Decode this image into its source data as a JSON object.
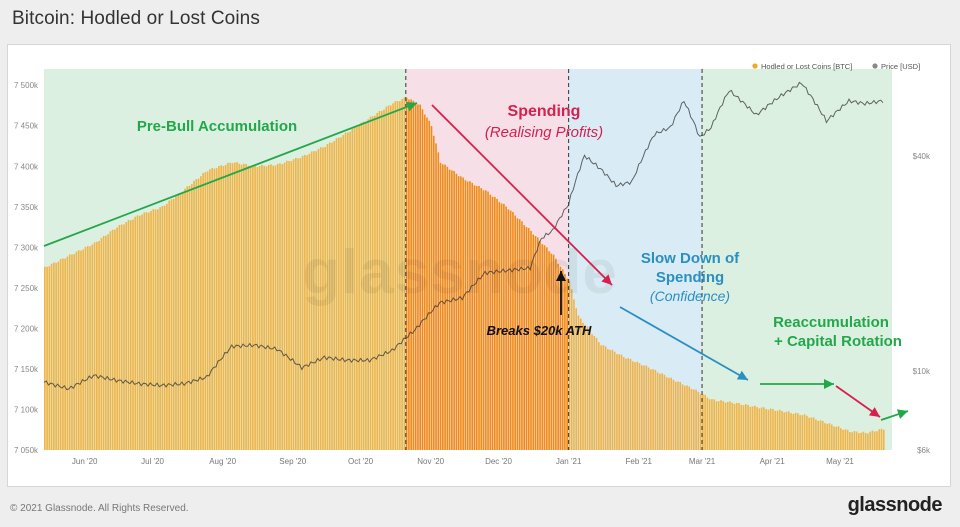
{
  "title": "Bitcoin: Hodled or Lost Coins",
  "footer": {
    "copyright": "© 2021 Glassnode. All Rights Reserved.",
    "brand": "glassnode"
  },
  "watermark": "glassnode",
  "colors": {
    "hodled": "#f5a623",
    "price": "#8a8a8a",
    "green_text": "#22a84a",
    "red_text": "#d62050",
    "blue_text": "#2b8fc2",
    "zone_green": "#dcf0e1",
    "zone_pink": "#f6dfe6",
    "zone_blue": "#d9ecf5"
  },
  "chart_data": {
    "type": "area",
    "legend_position": "top-right",
    "grid": false,
    "series": [
      {
        "name": "Hodled or Lost Coins [BTC]",
        "axis": "left",
        "points": [
          [
            "2020-05-14",
            7275000
          ],
          [
            "2020-05-25",
            7290000
          ],
          [
            "2020-06-05",
            7305000
          ],
          [
            "2020-06-15",
            7325000
          ],
          [
            "2020-06-25",
            7340000
          ],
          [
            "2020-07-05",
            7350000
          ],
          [
            "2020-07-15",
            7372000
          ],
          [
            "2020-07-25",
            7395000
          ],
          [
            "2020-08-05",
            7405000
          ],
          [
            "2020-08-15",
            7400000
          ],
          [
            "2020-08-25",
            7402000
          ],
          [
            "2020-09-05",
            7412000
          ],
          [
            "2020-09-15",
            7425000
          ],
          [
            "2020-09-25",
            7442000
          ],
          [
            "2020-10-05",
            7460000
          ],
          [
            "2020-10-15",
            7478000
          ],
          [
            "2020-10-21",
            7485000
          ],
          [
            "2020-10-27",
            7475000
          ],
          [
            "2020-11-01",
            7450000
          ],
          [
            "2020-11-05",
            7405000
          ],
          [
            "2020-11-15",
            7385000
          ],
          [
            "2020-11-25",
            7370000
          ],
          [
            "2020-12-05",
            7348000
          ],
          [
            "2020-12-15",
            7320000
          ],
          [
            "2020-12-25",
            7290000
          ],
          [
            "2021-01-01",
            7258000
          ],
          [
            "2021-01-05",
            7215000
          ],
          [
            "2021-01-15",
            7180000
          ],
          [
            "2021-01-25",
            7165000
          ],
          [
            "2021-02-05",
            7152000
          ],
          [
            "2021-02-15",
            7138000
          ],
          [
            "2021-02-25",
            7125000
          ],
          [
            "2021-03-05",
            7112000
          ],
          [
            "2021-03-15",
            7108000
          ],
          [
            "2021-03-25",
            7103000
          ],
          [
            "2021-04-05",
            7098000
          ],
          [
            "2021-04-15",
            7093000
          ],
          [
            "2021-04-25",
            7083000
          ],
          [
            "2021-05-05",
            7073000
          ],
          [
            "2021-05-12",
            7071000
          ],
          [
            "2021-05-20",
            7076000
          ]
        ]
      },
      {
        "name": "Price [USD]",
        "axis": "right",
        "points": [
          [
            "2020-05-14",
            9300
          ],
          [
            "2020-05-25",
            8900
          ],
          [
            "2020-06-05",
            9700
          ],
          [
            "2020-06-15",
            9400
          ],
          [
            "2020-06-25",
            9200
          ],
          [
            "2020-07-05",
            9100
          ],
          [
            "2020-07-15",
            9200
          ],
          [
            "2020-07-25",
            9600
          ],
          [
            "2020-08-05",
            11700
          ],
          [
            "2020-08-15",
            11800
          ],
          [
            "2020-08-25",
            11500
          ],
          [
            "2020-09-05",
            10200
          ],
          [
            "2020-09-15",
            10900
          ],
          [
            "2020-09-25",
            10700
          ],
          [
            "2020-10-05",
            10700
          ],
          [
            "2020-10-15",
            11400
          ],
          [
            "2020-10-25",
            13000
          ],
          [
            "2020-11-05",
            15500
          ],
          [
            "2020-11-15",
            16000
          ],
          [
            "2020-11-25",
            18800
          ],
          [
            "2020-12-05",
            19100
          ],
          [
            "2020-12-15",
            19400
          ],
          [
            "2020-12-20",
            23500
          ],
          [
            "2020-12-25",
            24700
          ],
          [
            "2021-01-01",
            29300
          ],
          [
            "2021-01-08",
            40000
          ],
          [
            "2021-01-15",
            36800
          ],
          [
            "2021-01-22",
            33000
          ],
          [
            "2021-01-29",
            33800
          ],
          [
            "2021-02-08",
            46000
          ],
          [
            "2021-02-15",
            48000
          ],
          [
            "2021-02-21",
            57000
          ],
          [
            "2021-02-28",
            45000
          ],
          [
            "2021-03-05",
            48000
          ],
          [
            "2021-03-13",
            61000
          ],
          [
            "2021-03-25",
            52000
          ],
          [
            "2021-04-05",
            59000
          ],
          [
            "2021-04-14",
            64000
          ],
          [
            "2021-04-25",
            50000
          ],
          [
            "2021-05-05",
            57000
          ],
          [
            "2021-05-12",
            56000
          ],
          [
            "2021-05-20",
            57000
          ]
        ]
      }
    ],
    "x_range": [
      "2020-05-14",
      "2021-05-24"
    ],
    "x_ticks": [
      {
        "label": "Jun '20",
        "date": "2020-06-01"
      },
      {
        "label": "Jul '20",
        "date": "2020-07-01"
      },
      {
        "label": "Aug '20",
        "date": "2020-08-01"
      },
      {
        "label": "Sep '20",
        "date": "2020-09-01"
      },
      {
        "label": "Oct '20",
        "date": "2020-10-01"
      },
      {
        "label": "Nov '20",
        "date": "2020-11-01"
      },
      {
        "label": "Dec '20",
        "date": "2020-12-01"
      },
      {
        "label": "Jan '21",
        "date": "2021-01-01"
      },
      {
        "label": "Feb '21",
        "date": "2021-02-01"
      },
      {
        "label": "Mar '21",
        "date": "2021-03-01"
      },
      {
        "label": "Apr '21",
        "date": "2021-04-01"
      },
      {
        "label": "May '21",
        "date": "2021-05-01"
      }
    ],
    "y_left": {
      "range": [
        7050000,
        7520000
      ],
      "ticks": [
        {
          "label": "7 500k",
          "value": 7500000
        },
        {
          "label": "7 450k",
          "value": 7450000
        },
        {
          "label": "7 400k",
          "value": 7400000
        },
        {
          "label": "7 350k",
          "value": 7350000
        },
        {
          "label": "7 300k",
          "value": 7300000
        },
        {
          "label": "7 250k",
          "value": 7250000
        },
        {
          "label": "7 200k",
          "value": 7200000
        },
        {
          "label": "7 150k",
          "value": 7150000
        },
        {
          "label": "7 100k",
          "value": 7100000
        },
        {
          "label": "7 050k",
          "value": 7050000
        }
      ]
    },
    "y_right": {
      "scale": "log",
      "range": [
        6000,
        70000
      ],
      "ticks": [
        {
          "label": "$40k",
          "value": 40000
        },
        {
          "label": "$10k",
          "value": 10000
        },
        {
          "label": "$6k",
          "value": 6000
        }
      ]
    },
    "zones": [
      {
        "from": "2020-05-14",
        "to": "2020-10-21",
        "color": "#dcf0e1"
      },
      {
        "from": "2020-10-21",
        "to": "2021-01-01",
        "color": "#f6dfe6"
      },
      {
        "from": "2021-01-01",
        "to": "2021-03-01",
        "color": "#d9ecf5"
      },
      {
        "from": "2021-03-01",
        "to": "2021-05-24",
        "color": "#dcf0e1"
      }
    ],
    "highlight_span": {
      "from": "2020-10-21",
      "to": "2021-01-01"
    },
    "dividers": [
      "2020-10-21",
      "2021-01-01",
      "2021-03-01"
    ],
    "annotations": [
      {
        "id": "pre_bull",
        "text": "Pre-Bull Accumulation",
        "color": "green"
      },
      {
        "id": "spending",
        "text": "Spending",
        "color": "red"
      },
      {
        "id": "spending_sub",
        "text": "(Realising Profits)",
        "color": "red",
        "italic": true
      },
      {
        "id": "slowdown1",
        "text": "Slow Down of",
        "color": "blue"
      },
      {
        "id": "slowdown2",
        "text": "Spending",
        "color": "blue"
      },
      {
        "id": "slowdown_sub",
        "text": "(Confidence)",
        "color": "blue",
        "italic": true
      },
      {
        "id": "reacc1",
        "text": "Reaccumulation",
        "color": "green"
      },
      {
        "id": "reacc2",
        "text": "+ Capital Rotation",
        "color": "green"
      },
      {
        "id": "ath",
        "text": "Breaks $20k ATH",
        "color": "black",
        "italic": true
      }
    ]
  }
}
